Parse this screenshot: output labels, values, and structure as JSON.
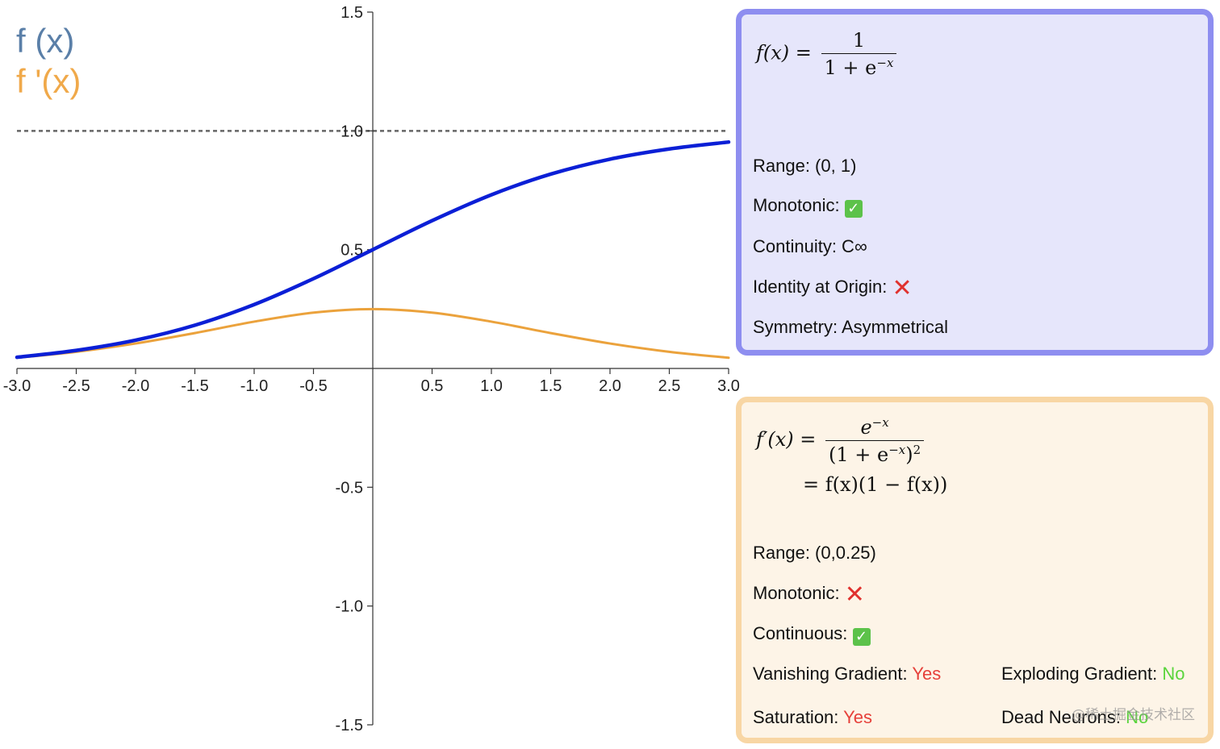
{
  "legend": {
    "f_label": "f (x)",
    "fp_label": "f '(x)",
    "f_color": "#5a7fa8",
    "fp_color": "#f0a94a"
  },
  "chart_data": {
    "type": "line",
    "title": "",
    "xlabel": "",
    "ylabel": "",
    "xlim": [
      -3.0,
      3.0
    ],
    "ylim": [
      -1.5,
      1.5
    ],
    "x_ticks": [
      "-3.0",
      "-2.5",
      "-2.0",
      "-1.5",
      "-1.0",
      "-0.5",
      "0.5",
      "1.0",
      "1.5",
      "2.0",
      "2.5",
      "3.0"
    ],
    "y_ticks": [
      "1.5",
      "1.0",
      "0.5",
      "-0.5",
      "-1.0",
      "-1.5"
    ],
    "reference_line": {
      "y": 1.0,
      "style": "dashed",
      "color": "#666666"
    },
    "grid": false,
    "x": [
      -3.0,
      -2.5,
      -2.0,
      -1.5,
      -1.0,
      -0.5,
      0.0,
      0.5,
      1.0,
      1.5,
      2.0,
      2.5,
      3.0
    ],
    "series": [
      {
        "color": "#0b1fd6",
        "values": [
          0.047,
          0.076,
          0.119,
          0.182,
          0.269,
          0.378,
          0.5,
          0.622,
          0.731,
          0.818,
          0.881,
          0.924,
          0.953
        ]
      },
      {
        "color": "#eba23c",
        "values": [
          0.045,
          0.07,
          0.105,
          0.149,
          0.197,
          0.235,
          0.25,
          0.235,
          0.197,
          0.149,
          0.105,
          0.07,
          0.045
        ]
      }
    ]
  },
  "card_f": {
    "formula_lhs": "f(x) =",
    "numerator": "1",
    "denominator_base": "1 + e",
    "denominator_exp": "−x",
    "range": "Range: (0, 1)",
    "monotonic": "Monotonic:",
    "monotonic_mark": "✓",
    "continuity": "Continuity: C∞",
    "identity": "Identity at Origin:",
    "identity_mark": "✕",
    "symmetry": "Symmetry: Asymmetrical"
  },
  "card_fp": {
    "formula_lhs": "f′(x) =",
    "numerator_base": "e",
    "numerator_exp": "−x",
    "denominator_a": "(1 + e",
    "denominator_exp": "−x",
    "denominator_b": ")",
    "denominator_pow": "2",
    "second_line": "= f(x)(1 − f(x))",
    "range": "Range: (0,0.25)",
    "monotonic": "Monotonic:",
    "monotonic_mark": "✕",
    "continuous": "Continuous:",
    "continuous_mark": "✓",
    "vanishing_label": "Vanishing Gradient:",
    "vanishing_value": "Yes",
    "exploding_label": "Exploding Gradient:",
    "exploding_value": "No",
    "saturation_label": "Saturation:",
    "saturation_value": "Yes",
    "dead_label": "Dead Neurons:",
    "dead_value": "No"
  },
  "watermark": "@稀土掘金技术社区"
}
